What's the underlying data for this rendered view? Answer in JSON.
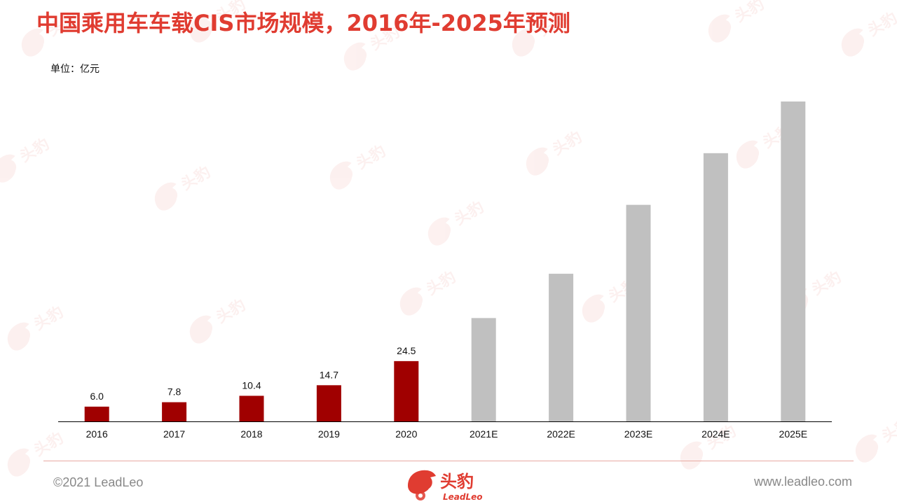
{
  "title": "中国乘用车车载CIS市场规模，2016年-2025年预测",
  "unit_label": "单位：亿元",
  "chart_data": {
    "type": "bar",
    "categories": [
      "2016",
      "2017",
      "2018",
      "2019",
      "2020",
      "2021E",
      "2022E",
      "2023E",
      "2024E",
      "2025E"
    ],
    "values": [
      6.0,
      7.8,
      10.4,
      14.7,
      24.5,
      42.0,
      60.0,
      88.0,
      109.0,
      130.0
    ],
    "data_labels": [
      "6.0",
      "7.8",
      "10.4",
      "14.7",
      "24.5",
      "",
      "",
      "",
      "",
      ""
    ],
    "ylim": [
      0,
      130
    ],
    "grid": false,
    "colors": {
      "actual": "#a00000",
      "forecast": "#c0c0c0"
    }
  },
  "footer": {
    "copyright": "©2021 LeadLeo",
    "website": "www.leadleo.com",
    "logo_cn": "头豹",
    "logo_en": "LeadLeo"
  },
  "colors": {
    "title": "#e03c31",
    "accent": "#e03c31"
  }
}
